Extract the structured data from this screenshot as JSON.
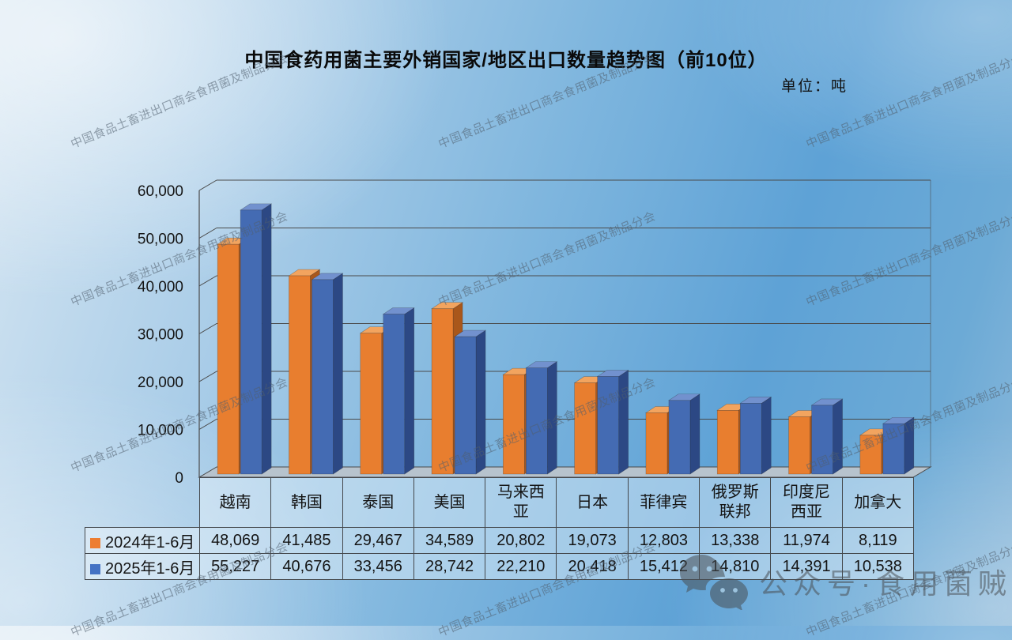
{
  "title": "中国食药用菌主要外销国家/地区出口数量趋势图（前10位）",
  "unit_label": "单位：吨",
  "watermark": {
    "text": "中国食品土畜进出口商会食用菌及制品分会"
  },
  "footer_watermark": {
    "text": "公众号·食用菌贼船"
  },
  "colors": {
    "series_2024_front": "#E87E2F",
    "series_2024_top": "#F2A45F",
    "series_2024_side": "#A9571B",
    "series_2025_front": "#446BB3",
    "series_2025_top": "#7291CE",
    "series_2025_side": "#2C4884",
    "legend_2024": "#ED7D31",
    "legend_2025": "#4472C4",
    "grid_line": "#4a4a4a",
    "floor": "#b7c3cd",
    "background_sky": "#7fb6de"
  },
  "chart_data": {
    "type": "bar",
    "style": "3d-clustered-column",
    "title": "中国食药用菌主要外销国家/地区出口数量趋势图（前10位）",
    "unit": "吨",
    "categories": [
      "越南",
      "韩国",
      "泰国",
      "美国",
      "马来西亚",
      "日本",
      "菲律宾",
      "俄罗斯联邦",
      "印度尼西亚",
      "加拿大"
    ],
    "categories_display": [
      "越南",
      "韩国",
      "泰国",
      "美国",
      "马来西\n亚",
      "日本",
      "菲律宾",
      "俄罗斯\n联邦",
      "印度尼\n西亚",
      "加拿大"
    ],
    "series": [
      {
        "name": "2024年1-6月",
        "color": "#ED7D31",
        "values": [
          48069,
          41485,
          29467,
          34589,
          20802,
          19073,
          12803,
          13338,
          11974,
          8119
        ],
        "values_formatted": [
          "48,069",
          "41,485",
          "29,467",
          "34,589",
          "20,802",
          "19,073",
          "12,803",
          "13,338",
          "11,974",
          "8,119"
        ]
      },
      {
        "name": "2025年1-6月",
        "color": "#4472C4",
        "values": [
          55227,
          40676,
          33456,
          28742,
          22210,
          20418,
          15412,
          14810,
          14391,
          10538
        ],
        "values_formatted": [
          "55,227",
          "40,676",
          "33,456",
          "28,742",
          "22,210",
          "20,418",
          "15,412",
          "14,810",
          "14,391",
          "10,538"
        ]
      }
    ],
    "ylim": [
      0,
      60000
    ],
    "ytick_interval": 10000,
    "ytick_labels": [
      "0",
      "10,000",
      "20,000",
      "30,000",
      "40,000",
      "50,000",
      "60,000"
    ],
    "grid": true,
    "legend_position": "table-left"
  }
}
